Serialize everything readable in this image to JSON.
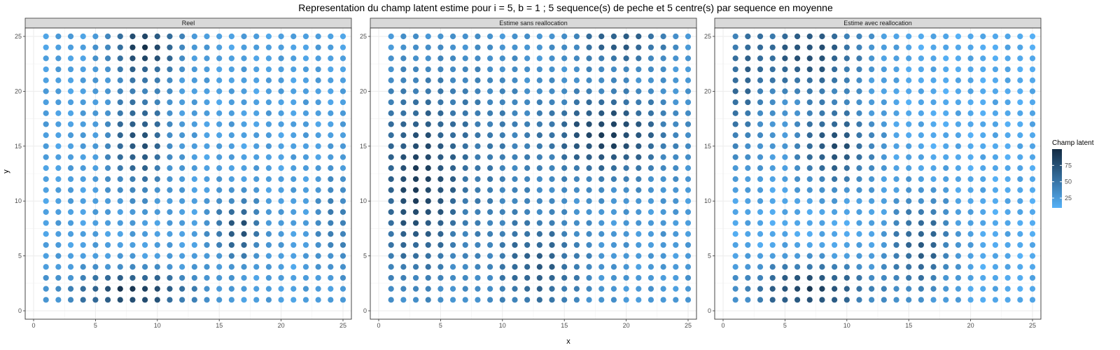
{
  "chart_data": {
    "type": "scatter",
    "title": "Representation du champ latent estime pour i = 5, b = 1 ; 5 sequence(s) de peche et 5 centre(s) par sequence en moyenne",
    "xlabel": "x",
    "ylabel": "y",
    "xlim": [
      0,
      25
    ],
    "ylim": [
      0,
      25
    ],
    "x_ticks": [
      0,
      5,
      10,
      15,
      20,
      25
    ],
    "y_ticks": [
      0,
      5,
      10,
      15,
      20,
      25
    ],
    "grid": true,
    "grid_size": 25,
    "panels": [
      {
        "name": "Reel",
        "hotspots": [
          {
            "x": 9,
            "y": 24,
            "sx": 1.8,
            "sy": 1.8,
            "amp": 70
          },
          {
            "x": 8.5,
            "y": 15.5,
            "sx": 1.6,
            "sy": 3.0,
            "amp": 55
          },
          {
            "x": 8,
            "y": 1.8,
            "sx": 3.2,
            "sy": 1.2,
            "amp": 70
          },
          {
            "x": 16.5,
            "y": 7.5,
            "sx": 1.3,
            "sy": 1.8,
            "amp": 55
          },
          {
            "x": 24.5,
            "y": 8,
            "sx": 1.2,
            "sy": 3.0,
            "amp": 25
          }
        ],
        "base": 22
      },
      {
        "name": "Estime sans reallocation",
        "hotspots": [
          {
            "x": 18.5,
            "y": 16,
            "sx": 3.2,
            "sy": 2.5,
            "amp": 62
          },
          {
            "x": 3,
            "y": 11.5,
            "sx": 2.2,
            "sy": 5.5,
            "amp": 55
          },
          {
            "x": 19.5,
            "y": 24.5,
            "sx": 2.5,
            "sy": 1.4,
            "amp": 45
          },
          {
            "x": 13,
            "y": 4,
            "sx": 2.5,
            "sy": 3.0,
            "amp": 40
          },
          {
            "x": 8,
            "y": 15,
            "sx": 3.5,
            "sy": 6.0,
            "amp": 20
          }
        ],
        "base": 26
      },
      {
        "name": "Estime avec reallocation",
        "hotspots": [
          {
            "x": 7,
            "y": 23.5,
            "sx": 3.0,
            "sy": 2.5,
            "amp": 62
          },
          {
            "x": 9,
            "y": 15,
            "sx": 2.2,
            "sy": 2.5,
            "amp": 62
          },
          {
            "x": 7,
            "y": 2,
            "sx": 3.5,
            "sy": 1.6,
            "amp": 70
          },
          {
            "x": 16,
            "y": 6,
            "sx": 1.8,
            "sy": 3.0,
            "amp": 52
          },
          {
            "x": 1.5,
            "y": 20,
            "sx": 1.4,
            "sy": 5.0,
            "amp": 38
          }
        ],
        "base": 16
      }
    ],
    "legend": {
      "title": "Champ latent",
      "ticks": [
        25,
        50,
        75
      ],
      "min": 10,
      "max": 100,
      "low_color": "#56B1F7",
      "high_color": "#132B43",
      "position": "right"
    }
  }
}
